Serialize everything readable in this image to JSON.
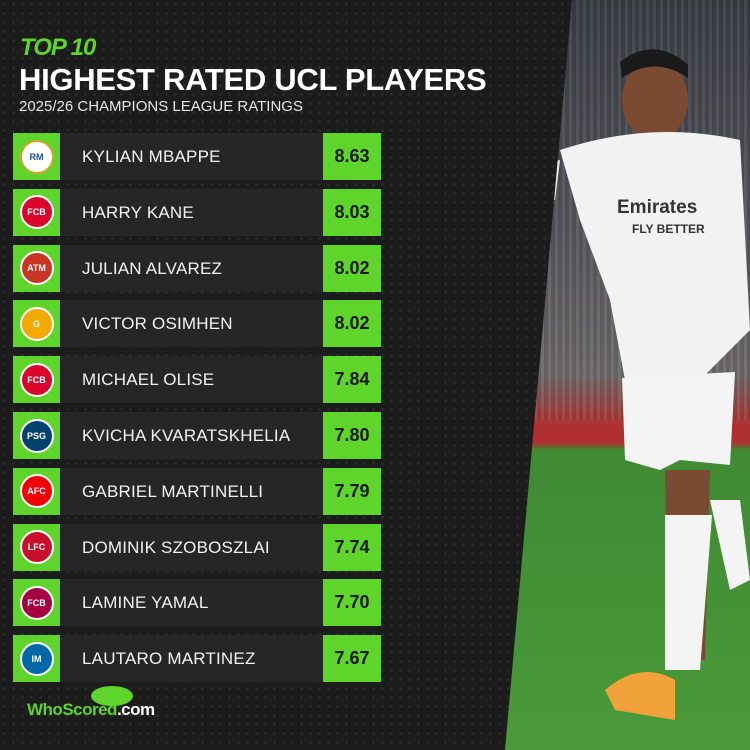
{
  "header": {
    "kicker": "TOP 10",
    "title": "HIGHEST RATED UCL PLAYERS",
    "subtitle": "2025/26 CHAMPIONS LEAGUE RATINGS"
  },
  "colors": {
    "accent": "#5fd42a",
    "background": "#1c1c1c"
  },
  "players": [
    {
      "rank": 1,
      "name": "KYLIAN MBAPPE",
      "rating": "8.63",
      "club_icon": "real-madrid-crest",
      "crest_color": "#ffffff",
      "crest_text": "RM"
    },
    {
      "rank": 2,
      "name": "HARRY KANE",
      "rating": "8.03",
      "club_icon": "bayern-munich-crest",
      "crest_color": "#dc052d",
      "crest_text": "FCB"
    },
    {
      "rank": 3,
      "name": "JULIAN ALVAREZ",
      "rating": "8.02",
      "club_icon": "atletico-madrid-crest",
      "crest_color": "#cb3524",
      "crest_text": "ATM"
    },
    {
      "rank": 4,
      "name": "VICTOR OSIMHEN",
      "rating": "8.02",
      "club_icon": "galatasaray-crest",
      "crest_color": "#f2a900",
      "crest_text": "G"
    },
    {
      "rank": 5,
      "name": "MICHAEL OLISE",
      "rating": "7.84",
      "club_icon": "bayern-munich-crest",
      "crest_color": "#dc052d",
      "crest_text": "FCB"
    },
    {
      "rank": 6,
      "name": "KVICHA KVARATSKHELIA",
      "rating": "7.80",
      "club_icon": "psg-crest",
      "crest_color": "#004170",
      "crest_text": "PSG"
    },
    {
      "rank": 7,
      "name": "GABRIEL MARTINELLI",
      "rating": "7.79",
      "club_icon": "arsenal-crest",
      "crest_color": "#ef0107",
      "crest_text": "AFC"
    },
    {
      "rank": 8,
      "name": "DOMINIK SZOBOSZLAI",
      "rating": "7.74",
      "club_icon": "liverpool-crest",
      "crest_color": "#c8102e",
      "crest_text": "LFC"
    },
    {
      "rank": 9,
      "name": "LAMINE YAMAL",
      "rating": "7.70",
      "club_icon": "barcelona-crest",
      "crest_color": "#a50044",
      "crest_text": "FCB"
    },
    {
      "rank": 10,
      "name": "LAUTARO MARTINEZ",
      "rating": "7.67",
      "club_icon": "inter-milan-crest",
      "crest_color": "#0068a8",
      "crest_text": "IM"
    }
  ],
  "photo": {
    "shirt_sponsor": "Emirates",
    "shirt_tagline": "FLY BETTER"
  },
  "brand": {
    "logo_a": "WhoScored",
    "logo_b": ".com"
  }
}
